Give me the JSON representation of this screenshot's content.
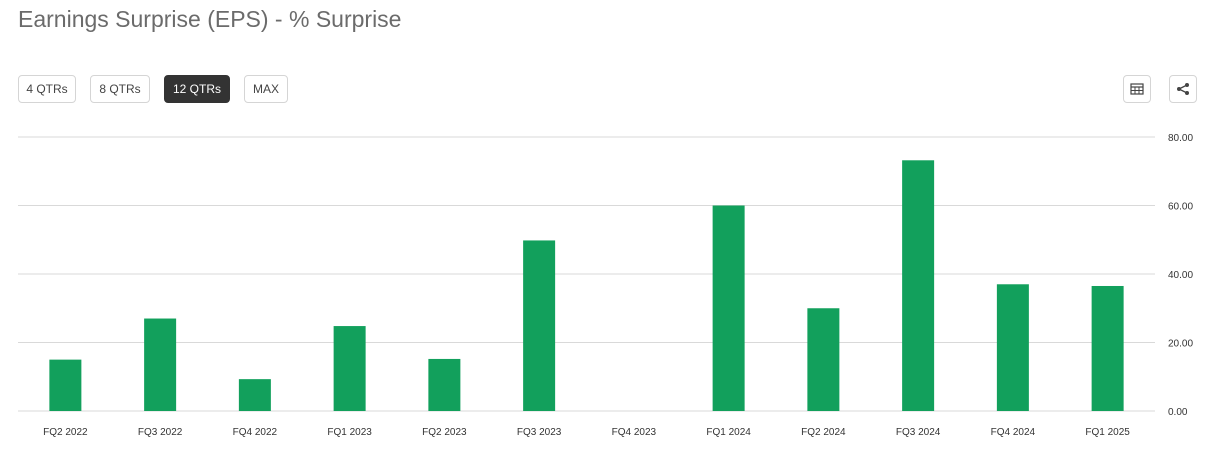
{
  "header": {
    "title": "Earnings Surprise (EPS) - % Surprise"
  },
  "range_buttons": [
    {
      "label": "4 QTRs",
      "active": false
    },
    {
      "label": "8 QTRs",
      "active": false
    },
    {
      "label": "12 QTRs",
      "active": true
    },
    {
      "label": "MAX",
      "active": false
    }
  ],
  "toolbar": {
    "table_icon": "table-icon",
    "share_icon": "share-icon"
  },
  "colors": {
    "bar": "#12a05c",
    "grid": "#d9d9d9",
    "active_button": "#333333"
  },
  "chart_data": {
    "type": "bar",
    "title": "Earnings Surprise (EPS) - % Surprise",
    "categories": [
      "FQ2 2022",
      "FQ3 2022",
      "FQ4 2022",
      "FQ1 2023",
      "FQ2 2023",
      "FQ3 2023",
      "FQ4 2023",
      "FQ1 2024",
      "FQ2 2024",
      "FQ3 2024",
      "FQ4 2024",
      "FQ1 2025"
    ],
    "values": [
      15.0,
      27.0,
      9.3,
      24.8,
      15.2,
      49.8,
      0,
      60.0,
      30.0,
      73.2,
      37.0,
      36.5
    ],
    "y_ticks": [
      "0.00",
      "20.00",
      "40.00",
      "60.00",
      "80.00"
    ],
    "ylim": [
      0,
      80
    ],
    "y_axis_side": "right",
    "grid": true,
    "legend": false
  }
}
